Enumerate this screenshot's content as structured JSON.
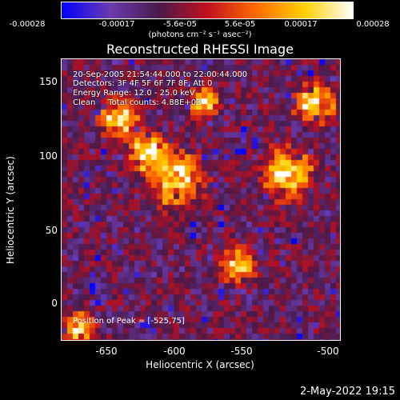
{
  "colorbar": {
    "ticks": [
      "-0.00028",
      "-0.00017",
      "-5.6e-05",
      "5.6e-05",
      "0.00017",
      "0.00028"
    ],
    "units": "(photons cm⁻² s⁻¹ asec⁻²)",
    "colors": [
      "#0000ff",
      "#6a3bb0",
      "#4a1a4a",
      "#c01020",
      "#ff6a00",
      "#ffd000",
      "#ffffff"
    ]
  },
  "plot": {
    "title": "Reconstructed RHESSI Image",
    "info": {
      "time": "20-Sep-2005 21:54:44.000 to 22:00:44.000",
      "detectors": "Detectors: 3F 4F 5F 6F 7F 8F, Att 0",
      "energy": "Energy Range: 12.0 - 25.0 keV",
      "clean": "Clean     Total counts: 4.88E+03"
    },
    "peak": "Position of Peak = [-525,75]",
    "xlabel": "Heliocentric X (arcsec)",
    "ylabel": "Heliocentric Y (arcsec)",
    "xticks": [
      "-650",
      "-600",
      "-550",
      "-500"
    ],
    "yticks": [
      "150",
      "100",
      "50",
      "0"
    ]
  },
  "footer": {
    "timestamp": "2-May-2022 19:15"
  }
}
